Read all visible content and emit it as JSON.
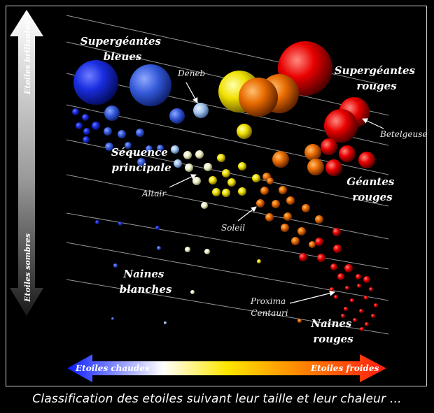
{
  "axis": {
    "bright_label": "Etoiles brillantes",
    "dim_label": "Etoiles sombres",
    "hot_label": "Etoiles chaudes",
    "cold_label": "Etoiles froides"
  },
  "regions": {
    "blue_supergiants": [
      "Supergéantes",
      "bleues"
    ],
    "red_supergiants": [
      "Supergéantes",
      "rouges"
    ],
    "main_sequence": [
      "Séquence",
      "principale"
    ],
    "red_giants": [
      "Géantes",
      "rouges"
    ],
    "white_dwarfs": [
      "Naines",
      "blanches"
    ],
    "red_dwarfs": [
      "Naines",
      "rouges"
    ]
  },
  "stars": {
    "deneb": "Deneb",
    "betelgeuse": "Betelgeuse",
    "altair": "Altair",
    "soleil": "Soleil",
    "proxima": [
      "Proxima",
      "Centauri"
    ]
  },
  "caption": "Classification des etoiles suivant leur taille et leur chaleur ...",
  "colors": {
    "background": "#000000",
    "hot": "#0a1aff",
    "cold": "#ff1a10",
    "frame": "#cfcfcf"
  }
}
